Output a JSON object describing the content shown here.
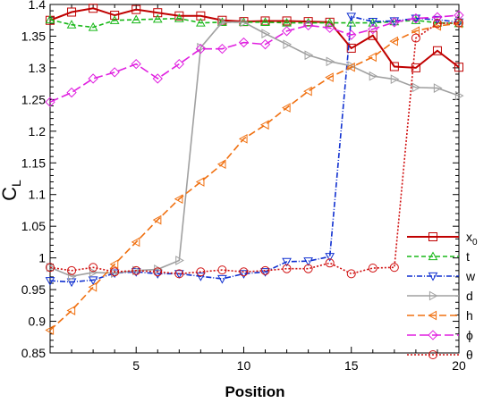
{
  "chart_data": {
    "type": "line",
    "title": "",
    "xlabel": "Position",
    "ylabel": "C",
    "ylabel_sub": "L",
    "xlim": [
      1,
      20
    ],
    "ylim": [
      0.85,
      1.4
    ],
    "xticks": [
      5,
      10,
      15,
      20
    ],
    "yticks": [
      0.85,
      0.9,
      0.95,
      1.0,
      1.05,
      1.1,
      1.15,
      1.2,
      1.25,
      1.3,
      1.35,
      1.4
    ],
    "ytick_labels": [
      "0.85",
      "0.9",
      "0.95",
      "1",
      "1.05",
      "1.1",
      "1.15",
      "1.2",
      "1.25",
      "1.3",
      "1.35",
      "1.4"
    ],
    "xtick_labels": [
      "5",
      "10",
      "15",
      "20"
    ],
    "grid": false,
    "legend_position": "bottom-right",
    "x": [
      1,
      2,
      3,
      4,
      5,
      6,
      7,
      8,
      9,
      10,
      11,
      12,
      13,
      14,
      15,
      16,
      17,
      18,
      19,
      20
    ],
    "series": [
      {
        "name": "x",
        "name_sub": "0",
        "color": "#c00000",
        "dash": "",
        "marker": "square",
        "values": [
          1.375,
          1.388,
          1.394,
          1.383,
          1.392,
          1.387,
          1.382,
          1.382,
          1.375,
          1.373,
          1.374,
          1.374,
          1.373,
          1.372,
          1.331,
          1.351,
          1.302,
          1.3,
          1.327,
          1.301
        ]
      },
      {
        "name": "t",
        "color": "#18b818",
        "dash": "5,3",
        "marker": "triangle-up",
        "values": [
          1.376,
          1.368,
          1.364,
          1.375,
          1.376,
          1.377,
          1.378,
          1.371,
          1.372,
          1.372,
          1.372,
          1.371,
          1.371,
          1.371,
          1.371,
          1.371,
          1.373,
          1.375,
          1.371,
          1.37
        ]
      },
      {
        "name": "w",
        "color": "#1030d0",
        "dash": "6,2,1,2",
        "marker": "triangle-down",
        "values": [
          0.964,
          0.962,
          0.965,
          0.976,
          0.978,
          0.975,
          0.975,
          0.971,
          0.967,
          0.975,
          0.978,
          0.994,
          0.995,
          1.002,
          1.381,
          1.373,
          1.374,
          1.378,
          1.376,
          1.372
        ]
      },
      {
        "name": "d",
        "color": "#a0a0a0",
        "dash": "",
        "marker": "triangle-right",
        "values": [
          0.985,
          0.971,
          0.977,
          0.976,
          0.98,
          0.982,
          0.996,
          1.332,
          1.372,
          1.372,
          1.354,
          1.337,
          1.32,
          1.31,
          1.303,
          1.287,
          1.282,
          1.269,
          1.268,
          1.256
        ]
      },
      {
        "name": "h",
        "color": "#f07010",
        "dash": "8,4",
        "marker": "triangle-left",
        "values": [
          0.886,
          0.917,
          0.954,
          0.99,
          1.025,
          1.06,
          1.093,
          1.12,
          1.148,
          1.188,
          1.21,
          1.237,
          1.263,
          1.285,
          1.301,
          1.317,
          1.342,
          1.358,
          1.366,
          1.37
        ]
      },
      {
        "name": "ϕ",
        "color": "#e020e0",
        "dash": "10,4",
        "marker": "diamond",
        "values": [
          1.246,
          1.261,
          1.283,
          1.293,
          1.306,
          1.283,
          1.306,
          1.33,
          1.33,
          1.34,
          1.337,
          1.358,
          1.367,
          1.363,
          1.352,
          1.361,
          1.372,
          1.378,
          1.38,
          1.383
        ]
      },
      {
        "name": "θ",
        "color": "#d01010",
        "dash": "2,2",
        "marker": "circle",
        "values": [
          0.985,
          0.98,
          0.985,
          0.978,
          0.98,
          0.978,
          0.975,
          0.978,
          0.981,
          0.978,
          0.98,
          0.983,
          0.983,
          0.992,
          0.975,
          0.984,
          0.985,
          1.347,
          1.37,
          1.371
        ]
      }
    ]
  }
}
